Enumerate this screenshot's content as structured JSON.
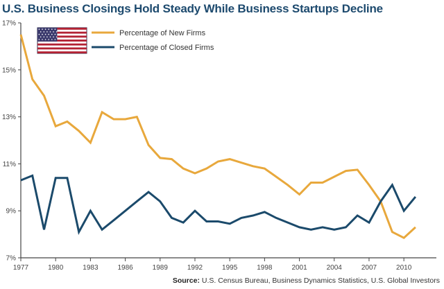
{
  "chart_data": {
    "type": "line",
    "title": "U.S. Business Closings Hold Steady While Business Startups Decline",
    "source_label": "Source:",
    "source_text": "U.S. Census Bureau, Business Dynamics Statistics, U.S. Global Investors",
    "xlabel": "",
    "ylabel": "",
    "x": [
      1977,
      1978,
      1979,
      1980,
      1981,
      1982,
      1983,
      1984,
      1985,
      1986,
      1987,
      1988,
      1989,
      1990,
      1991,
      1992,
      1993,
      1994,
      1995,
      1996,
      1997,
      1998,
      1999,
      2000,
      2001,
      2002,
      2003,
      2004,
      2005,
      2006,
      2007,
      2008,
      2009,
      2010,
      2011
    ],
    "xlim": [
      1977,
      2012.8
    ],
    "ylim": [
      7,
      17
    ],
    "x_ticks": [
      1977,
      1980,
      1983,
      1986,
      1989,
      1992,
      1995,
      1998,
      2001,
      2004,
      2007,
      2010
    ],
    "y_ticks": [
      7,
      9,
      11,
      13,
      15,
      17
    ],
    "y_tick_labels": [
      "7%",
      "9%",
      "11%",
      "13%",
      "15%",
      "17%"
    ],
    "grid": false,
    "legend_position": "top-left",
    "legend_icon": "us-flag",
    "series": [
      {
        "name": "Percentage of New Firms",
        "color": "#e8a83c",
        "values": [
          16.5,
          14.6,
          13.9,
          12.6,
          12.8,
          12.4,
          11.9,
          13.2,
          12.9,
          12.9,
          13.0,
          11.8,
          11.25,
          11.2,
          10.8,
          10.6,
          10.8,
          11.1,
          11.2,
          11.05,
          10.9,
          10.8,
          10.45,
          10.1,
          9.7,
          10.2,
          10.2,
          10.45,
          10.7,
          10.75,
          10.1,
          9.4,
          8.1,
          7.85,
          8.3
        ]
      },
      {
        "name": "Percentage of Closed Firms",
        "color": "#1b4a6b",
        "values": [
          10.3,
          10.5,
          8.2,
          10.4,
          10.4,
          8.1,
          9.0,
          8.2,
          8.6,
          9.0,
          9.4,
          9.8,
          9.4,
          8.7,
          8.5,
          9.0,
          8.55,
          8.55,
          8.45,
          8.7,
          8.8,
          8.95,
          8.7,
          8.5,
          8.3,
          8.2,
          8.3,
          8.2,
          8.3,
          8.8,
          8.5,
          9.4,
          10.1,
          9.0,
          9.6
        ]
      }
    ]
  }
}
